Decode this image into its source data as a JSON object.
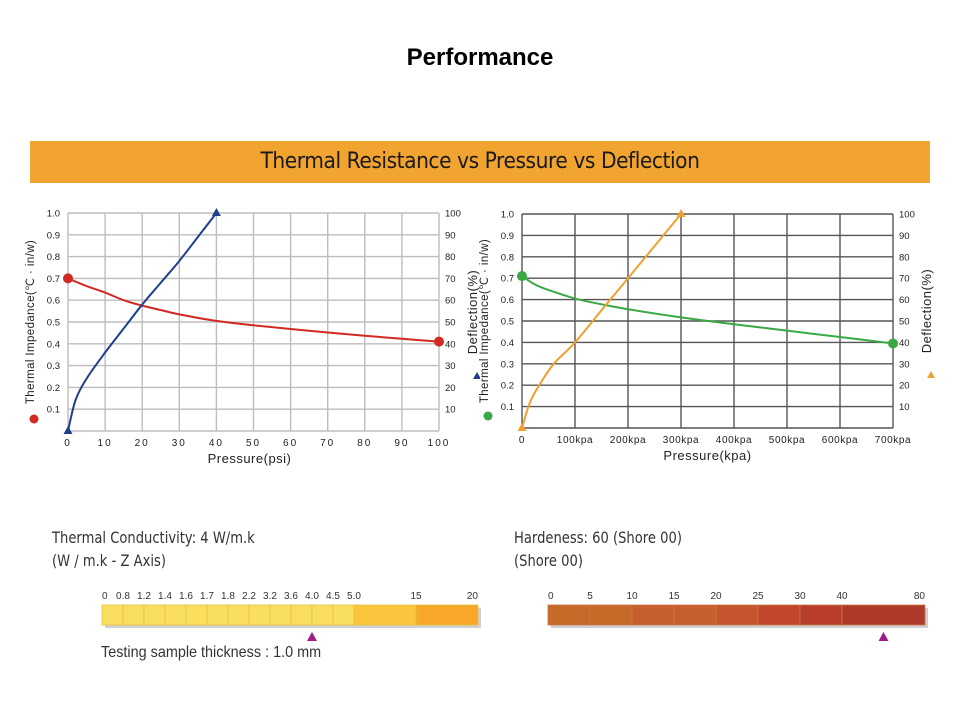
{
  "page": {
    "title": "Performance",
    "banner": "Thermal Resistance vs Pressure vs Deflection"
  },
  "chart_data": [
    {
      "type": "line",
      "title": "Thermal Resistance vs Pressure vs Deflection (psi)",
      "xlabel": "Pressure(psi)",
      "ylabel": "Thermal Impedance(℃ · in/w)",
      "y2label": "Deflection(%)",
      "xlim": [
        0,
        100
      ],
      "ylim": [
        0,
        1.0
      ],
      "y2lim": [
        0,
        100
      ],
      "xticks": [
        "0",
        "10",
        "20",
        "30",
        "40",
        "50",
        "60",
        "70",
        "80",
        "90",
        "100"
      ],
      "yticks": [
        "0.1",
        "0.2",
        "0.3",
        "0.4",
        "0.5",
        "0.6",
        "0.7",
        "0.8",
        "0.9",
        "1.0"
      ],
      "y2ticks": [
        "10",
        "20",
        "30",
        "40",
        "50",
        "60",
        "70",
        "80",
        "90",
        "100"
      ],
      "grid": true,
      "series": [
        {
          "name": "Thermal Impedance",
          "axis": "left",
          "color": "#d02a22",
          "marker": "circle",
          "x": [
            0,
            5,
            10,
            15,
            20,
            25,
            30,
            40,
            50,
            60,
            70,
            80,
            90,
            100
          ],
          "y": [
            0.7,
            0.665,
            0.635,
            0.6,
            0.575,
            0.555,
            0.535,
            0.505,
            0.485,
            0.468,
            0.452,
            0.437,
            0.423,
            0.41
          ]
        },
        {
          "name": "Deflection",
          "axis": "right",
          "color": "#1f3f8a",
          "marker": "triangle",
          "x": [
            0,
            2,
            5,
            10,
            15,
            20,
            25,
            30,
            35,
            40
          ],
          "y": [
            0,
            14,
            24,
            36,
            47,
            58,
            68,
            78,
            89,
            100
          ]
        }
      ]
    },
    {
      "type": "line",
      "title": "Thermal Resistance vs Pressure vs Deflection (kpa)",
      "xlabel": "Pressure(kpa)",
      "ylabel": "Thermal Impedance(℃ · in/w)",
      "y2label": "Deflection(%)",
      "xlim": [
        0,
        700
      ],
      "ylim": [
        0,
        1.0
      ],
      "y2lim": [
        0,
        100
      ],
      "xticks": [
        "0",
        "100kpa",
        "200kpa",
        "300kpa",
        "400kpa",
        "500kpa",
        "600kpa",
        "700kpa"
      ],
      "yticks": [
        "0.1",
        "0.2",
        "0.3",
        "0.4",
        "0.5",
        "0.6",
        "0.7",
        "0.8",
        "0.9",
        "1.0"
      ],
      "y2ticks": [
        "10",
        "20",
        "30",
        "40",
        "50",
        "60",
        "70",
        "80",
        "90",
        "100"
      ],
      "grid": true,
      "series": [
        {
          "name": "Thermal Impedance",
          "axis": "left",
          "color": "#3aa845",
          "marker": "circle",
          "x": [
            0,
            25,
            50,
            100,
            150,
            200,
            300,
            400,
            500,
            600,
            700
          ],
          "y": [
            0.71,
            0.67,
            0.645,
            0.605,
            0.578,
            0.555,
            0.517,
            0.485,
            0.455,
            0.425,
            0.395
          ]
        },
        {
          "name": "Deflection",
          "axis": "right",
          "color": "#f0a030",
          "marker": "triangle",
          "x": [
            0,
            15,
            35,
            60,
            100,
            150,
            200,
            250,
            300
          ],
          "y": [
            0,
            12,
            21,
            30,
            40,
            55,
            70,
            85,
            100
          ]
        }
      ]
    }
  ],
  "properties": {
    "conductivity": {
      "title": "Thermal Conductivity: 4 W/m.k",
      "subtitle": "(W / m.k - Z Axis)",
      "scale_labels": [
        "0",
        "0.8",
        "1.2",
        "1.4",
        "1.6",
        "1.7",
        "1.8",
        "2.2",
        "3.2",
        "3.6",
        "4.0",
        "4.5",
        "5.0",
        "15",
        "20"
      ],
      "value": 4.0,
      "testing_note": "Testing sample thickness :  1.0 mm",
      "colors": [
        "#fade5e",
        "#fbc53e",
        "#f8a728"
      ]
    },
    "hardness": {
      "title": "Hardeness: 60 (Shore 00)",
      "subtitle": "(Shore 00)",
      "scale_labels": [
        "0",
        "5",
        "10",
        "15",
        "20",
        "25",
        "30",
        "40",
        "80"
      ],
      "value": 60,
      "colors": [
        "#c66a2a",
        "#c75e2d",
        "#c4552c",
        "#c0472b",
        "#b83e2b",
        "#ad3a2b"
      ]
    },
    "marker_color": "#a3198a"
  }
}
